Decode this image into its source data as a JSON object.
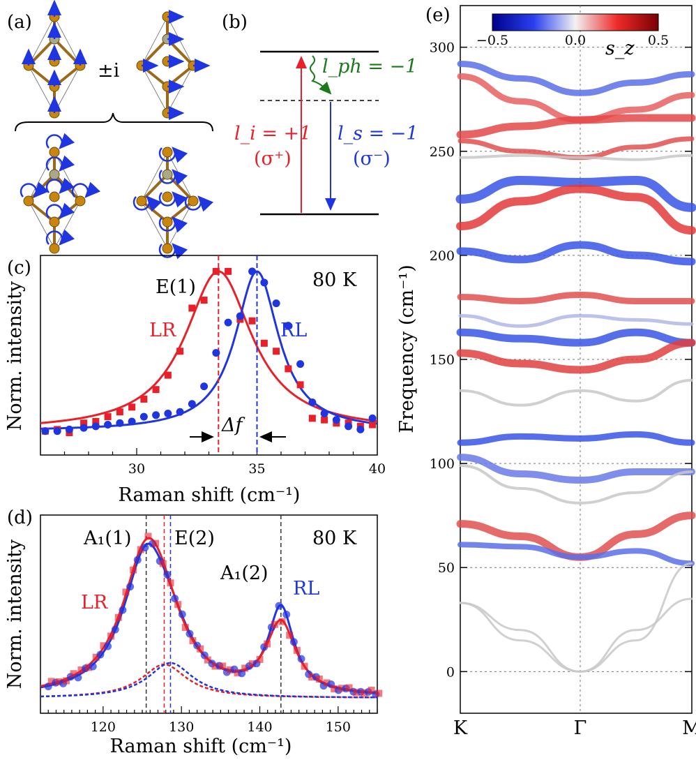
{
  "panels": {
    "a": {
      "label": "(a)",
      "factor": "±i"
    },
    "b": {
      "label": "(b)",
      "l_ph": "l_ph = −1",
      "l_i": "l_i = +1",
      "sigma_plus": "(σ⁺)",
      "l_s": "l_s = −1",
      "sigma_minus": "(σ⁻)"
    },
    "c": {
      "label": "(c)",
      "temp": "80 K",
      "peak": "E(1)",
      "lr": "LR",
      "rl": "RL",
      "delta": "Δf",
      "ylabel": "Norm. intensity",
      "xlabel": "Raman shift (cm⁻¹)"
    },
    "d": {
      "label": "(d)",
      "temp": "80 K",
      "peak1": "A₁(1)",
      "peak2": "E(2)",
      "peak3": "A₁(2)",
      "lr": "LR",
      "rl": "RL",
      "ylabel": "Norm. intensity",
      "xlabel": "Raman shift (cm⁻¹)"
    },
    "e": {
      "label": "(e)",
      "ylabel": "Frequency (cm⁻¹)",
      "cbar_min": "−0.5",
      "cbar_mid": "0.0",
      "cbar_max": "0.5",
      "cbar_label": "s_z"
    }
  },
  "colors": {
    "lr": "#e8202a",
    "rl": "#1f35e0",
    "green": "#1a7a1a",
    "gray": "#b8b8b8"
  },
  "chart_data": [
    {
      "type": "line",
      "panel": "c",
      "title": "",
      "xlabel": "Raman shift (cm⁻¹)",
      "ylabel": "Norm. intensity",
      "xlim": [
        26,
        40
      ],
      "ylim": [
        -0.15,
        1.1
      ],
      "xticks": [
        "30",
        "35",
        "40"
      ],
      "series": [
        {
          "name": "LR",
          "kind": "fit",
          "center": 33.4,
          "width": 1.7,
          "base": 0.0
        },
        {
          "name": "RL",
          "kind": "fit",
          "center": 35.0,
          "width": 1.1,
          "base": 0.0
        },
        {
          "name": "LR",
          "kind": "points",
          "x": [
            26.2,
            26.7,
            27.2,
            27.8,
            28.3,
            28.8,
            29.3,
            29.8,
            30.3,
            30.8,
            31.3,
            31.8,
            32.3,
            32.8,
            33.3,
            33.8,
            34.3,
            34.8,
            35.3,
            35.8,
            36.3,
            36.8,
            37.3,
            37.8,
            38.3,
            38.8,
            39.3,
            39.8
          ],
          "y": [
            0.0,
            0.01,
            -0.01,
            0.05,
            0.06,
            0.09,
            0.12,
            0.15,
            0.2,
            0.26,
            0.35,
            0.5,
            0.77,
            0.82,
            1.0,
            1.0,
            0.7,
            0.69,
            0.55,
            0.5,
            0.39,
            0.29,
            0.08,
            0.07,
            0.05,
            0.05,
            0.03,
            0.04
          ]
        },
        {
          "name": "RL",
          "kind": "points",
          "x": [
            26.2,
            26.7,
            27.2,
            27.8,
            28.3,
            28.8,
            29.3,
            29.8,
            30.3,
            30.8,
            31.3,
            31.8,
            32.3,
            32.8,
            33.3,
            33.8,
            34.3,
            34.8,
            35.3,
            35.8,
            36.3,
            36.8,
            37.3,
            37.8,
            38.3,
            38.8,
            39.3,
            39.8
          ],
          "y": [
            0.0,
            0.0,
            0.01,
            0.02,
            0.03,
            0.04,
            0.05,
            0.06,
            0.09,
            0.1,
            0.11,
            0.12,
            0.17,
            0.28,
            0.49,
            0.68,
            0.72,
            1.0,
            0.93,
            0.8,
            0.66,
            0.42,
            0.18,
            0.11,
            0.07,
            0.03,
            0.01,
            0.08
          ]
        }
      ],
      "annotations": {
        "lr_peak": 33.4,
        "rl_peak": 35.0
      }
    },
    {
      "type": "line",
      "panel": "d",
      "xlabel": "Raman shift (cm⁻¹)",
      "ylabel": "Norm. intensity",
      "xlim": [
        112,
        155
      ],
      "ylim": [
        -0.1,
        1.2
      ],
      "xticks": [
        "120",
        "130",
        "140",
        "150"
      ],
      "vlines": {
        "a1_1": 125.5,
        "e2_lr": 127.8,
        "e2_rl": 128.6,
        "a1_2": 142.7
      },
      "series": [
        {
          "name": "LR",
          "kind": "fit"
        },
        {
          "name": "RL",
          "kind": "fit"
        },
        {
          "name": "LR",
          "kind": "e2-component",
          "center": 127.8
        },
        {
          "name": "RL",
          "kind": "e2-component",
          "center": 128.6
        }
      ]
    },
    {
      "type": "line",
      "panel": "e",
      "xlabel": "",
      "ylabel": "Frequency (cm⁻¹)",
      "ylim": [
        -20,
        320
      ],
      "yticks": [
        "0",
        "50",
        "100",
        "150",
        "200",
        "250",
        "300"
      ],
      "xticks": [
        "K",
        "Γ",
        "M"
      ],
      "colorbar": {
        "min": -0.5,
        "max": 0.5,
        "label": "s_z"
      }
    }
  ]
}
